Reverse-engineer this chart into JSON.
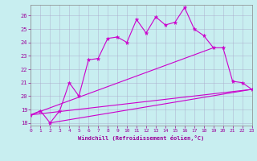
{
  "xlabel": "Windchill (Refroidissement éolien,°C)",
  "xlim": [
    0,
    23
  ],
  "ylim": [
    17.8,
    26.8
  ],
  "yticks": [
    18,
    19,
    20,
    21,
    22,
    23,
    24,
    25,
    26
  ],
  "xticks": [
    0,
    1,
    2,
    3,
    4,
    5,
    6,
    7,
    8,
    9,
    10,
    11,
    12,
    13,
    14,
    15,
    16,
    17,
    18,
    19,
    20,
    21,
    22,
    23
  ],
  "background_color": "#c8eef0",
  "grid_color": "#aaaacc",
  "line_color": "#cc00cc",
  "line1_x": [
    0,
    1,
    2,
    3,
    4,
    5,
    6,
    7,
    8,
    9,
    10,
    11,
    12,
    13,
    14,
    15,
    16,
    17,
    18,
    19,
    20,
    21,
    22,
    23
  ],
  "line1_y": [
    18.6,
    18.9,
    18.0,
    18.9,
    21.0,
    20.0,
    22.7,
    22.8,
    24.3,
    24.4,
    24.0,
    25.7,
    24.7,
    25.9,
    25.3,
    25.5,
    26.6,
    25.0,
    24.5,
    23.6,
    23.6,
    21.1,
    21.0,
    20.5
  ],
  "line2_x": [
    0,
    23
  ],
  "line2_y": [
    18.6,
    20.5
  ],
  "line3_x": [
    0,
    19
  ],
  "line3_y": [
    18.6,
    23.6
  ],
  "line4_x": [
    2,
    23
  ],
  "line4_y": [
    18.0,
    20.5
  ]
}
